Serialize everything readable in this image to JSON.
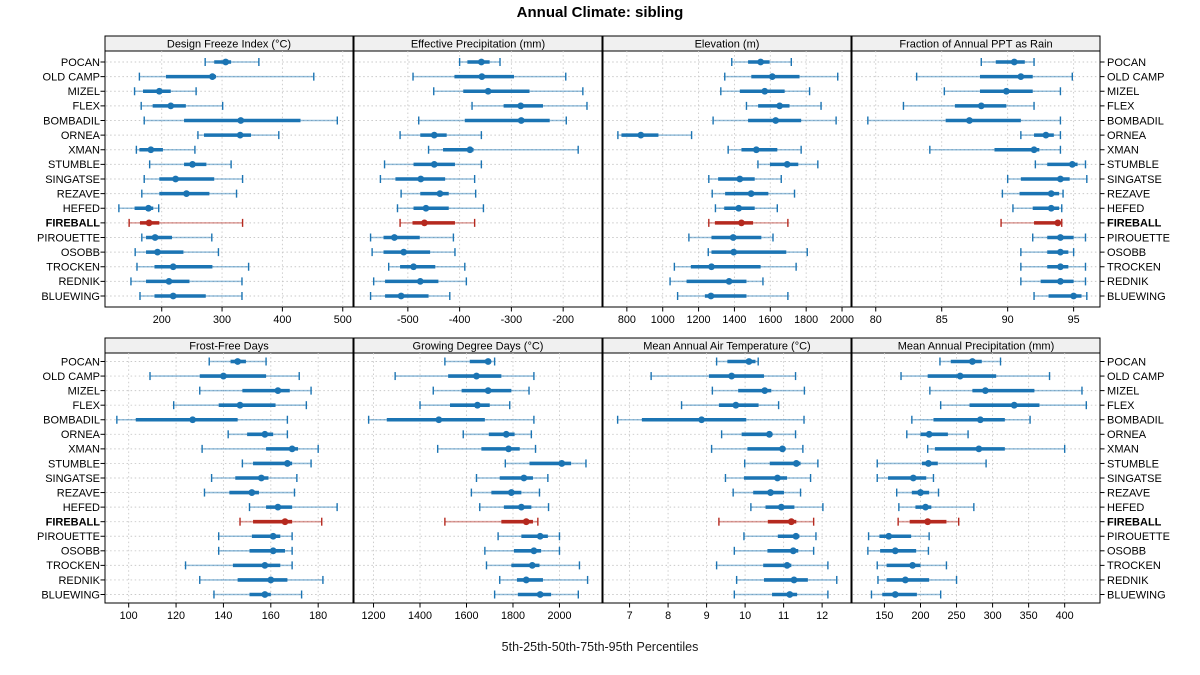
{
  "title": "Annual Climate: sibling",
  "caption": "5th-25th-50th-75th-95th Percentiles",
  "sites": [
    "POCAN",
    "OLD CAMP",
    "MIZEL",
    "FLEX",
    "BOMBADIL",
    "ORNEA",
    "XMAN",
    "STUMBLE",
    "SINGATSE",
    "REZAVE",
    "HEFED",
    "FIREBALL",
    "PIROUETTE",
    "OSOBB",
    "TROCKEN",
    "REDNIK",
    "BLUEWING"
  ],
  "highlight_site": "FIREBALL",
  "colors": {
    "series_blue": "#1b74b3",
    "highlight_red": "#b5291f",
    "grid": "#c9c9c9",
    "strip_bg": "#f0f0f0",
    "border": "#000000",
    "text": "#000000"
  },
  "chart_data": {
    "type": "percentile-dotplot-trellis",
    "percentiles": [
      5,
      25,
      50,
      75,
      95
    ],
    "legend_note": "thin line = 5th-95th, thick line = 25th-75th, dot = 50th",
    "panels": [
      {
        "title": "Design Freeze Index (°C)",
        "row": 0,
        "col": 0,
        "ticks": [
          200,
          300,
          400,
          500
        ],
        "xlim": [
          106,
          517
        ],
        "values": [
          [
            272,
            287,
            306,
            315,
            361
          ],
          [
            163,
            207,
            284,
            290,
            452
          ],
          [
            155,
            169,
            196,
            215,
            257
          ],
          [
            166,
            185,
            215,
            240,
            301
          ],
          [
            171,
            237,
            331,
            430,
            491
          ],
          [
            260,
            270,
            330,
            348,
            394
          ],
          [
            158,
            163,
            182,
            202,
            255
          ],
          [
            180,
            237,
            251,
            274,
            315
          ],
          [
            171,
            196,
            223,
            287,
            334
          ],
          [
            167,
            196,
            241,
            279,
            324
          ],
          [
            129,
            155,
            178,
            186,
            195
          ],
          [
            146,
            164,
            179,
            196,
            334
          ],
          [
            167,
            174,
            189,
            217,
            283
          ],
          [
            156,
            174,
            193,
            236,
            294
          ],
          [
            159,
            188,
            219,
            284,
            344
          ],
          [
            149,
            174,
            212,
            246,
            333
          ],
          [
            164,
            188,
            219,
            273,
            333
          ]
        ]
      },
      {
        "title": "Effective Precipitation (mm)",
        "row": 0,
        "col": 1,
        "ticks": [
          -500,
          -400,
          -300,
          -200
        ],
        "xlim": [
          -604,
          -125
        ],
        "values": [
          [
            -400,
            -385,
            -358,
            -342,
            -322
          ],
          [
            -490,
            -410,
            -357,
            -295,
            -195
          ],
          [
            -450,
            -393,
            -345,
            -265,
            -162
          ],
          [
            -376,
            -315,
            -282,
            -239,
            -154
          ],
          [
            -479,
            -390,
            -281,
            -226,
            -194
          ],
          [
            -515,
            -476,
            -449,
            -425,
            -358
          ],
          [
            -460,
            -432,
            -380,
            -373,
            -171
          ],
          [
            -545,
            -489,
            -449,
            -409,
            -358
          ],
          [
            -553,
            -524,
            -475,
            -428,
            -371
          ],
          [
            -513,
            -476,
            -438,
            -421,
            -369
          ],
          [
            -520,
            -489,
            -465,
            -421,
            -354
          ],
          [
            -515,
            -491,
            -468,
            -409,
            -371
          ],
          [
            -572,
            -547,
            -526,
            -477,
            -412
          ],
          [
            -569,
            -547,
            -508,
            -457,
            -409
          ],
          [
            -537,
            -515,
            -489,
            -447,
            -390
          ],
          [
            -566,
            -544,
            -476,
            -441,
            -387
          ],
          [
            -572,
            -544,
            -513,
            -460,
            -419
          ]
        ]
      },
      {
        "title": "Elevation (m)",
        "row": 0,
        "col": 2,
        "ticks": [
          800,
          1000,
          1200,
          1400,
          1600,
          1800,
          2000
        ],
        "xlim": [
          667,
          2050
        ],
        "values": [
          [
            1385,
            1476,
            1546,
            1596,
            1717
          ],
          [
            1346,
            1494,
            1611,
            1763,
            1976
          ],
          [
            1324,
            1430,
            1569,
            1680,
            1819
          ],
          [
            1467,
            1532,
            1652,
            1707,
            1883
          ],
          [
            1281,
            1476,
            1630,
            1772,
            1967
          ],
          [
            750,
            770,
            878,
            976,
            1161
          ],
          [
            1365,
            1439,
            1522,
            1639,
            1772
          ],
          [
            1531,
            1598,
            1694,
            1756,
            1865
          ],
          [
            1257,
            1309,
            1430,
            1513,
            1661
          ],
          [
            1276,
            1348,
            1493,
            1589,
            1735
          ],
          [
            1294,
            1343,
            1424,
            1513,
            1639
          ],
          [
            1257,
            1291,
            1439,
            1504,
            1698
          ],
          [
            1146,
            1272,
            1393,
            1550,
            1615
          ],
          [
            1254,
            1272,
            1396,
            1689,
            1806
          ],
          [
            1065,
            1157,
            1272,
            1546,
            1744
          ],
          [
            1041,
            1133,
            1370,
            1467,
            1559
          ],
          [
            1083,
            1235,
            1269,
            1467,
            1698
          ]
        ]
      },
      {
        "title": "Fraction of Annual PPT as Rain",
        "row": 0,
        "col": 3,
        "ticks": [
          80,
          85,
          90,
          95
        ],
        "xlim": [
          78.2,
          97
        ],
        "values": [
          [
            88,
            89.1,
            90.5,
            91.3,
            92
          ],
          [
            83.1,
            87.9,
            91,
            91.9,
            94.9
          ],
          [
            85.2,
            87.9,
            89.9,
            91.9,
            94
          ],
          [
            82.1,
            86,
            88,
            89.9,
            92
          ],
          [
            79.4,
            85.3,
            87.1,
            91,
            94
          ],
          [
            91,
            92,
            92.9,
            93.5,
            94
          ],
          [
            84.1,
            89,
            92,
            92.4,
            94
          ],
          [
            92.1,
            93,
            94.9,
            95.3,
            95.9
          ],
          [
            90,
            91,
            94,
            94.7,
            96
          ],
          [
            89.6,
            90.9,
            93.3,
            93.9,
            94.2
          ],
          [
            90.4,
            91.9,
            93.3,
            93.9,
            94.1
          ],
          [
            89.5,
            92,
            93.8,
            94,
            94.1
          ],
          [
            91.9,
            93,
            94,
            95,
            95.9
          ],
          [
            91,
            93,
            94,
            94.6,
            95
          ],
          [
            91,
            93,
            94,
            94.6,
            95.9
          ],
          [
            91,
            92.5,
            94,
            95,
            95.9
          ],
          [
            92,
            93.1,
            95,
            95.6,
            96
          ]
        ]
      },
      {
        "title": "Frost-Free Days",
        "row": 1,
        "col": 0,
        "ticks": [
          100,
          120,
          140,
          160,
          180
        ],
        "xlim": [
          90,
          194.7
        ],
        "values": [
          [
            134,
            143,
            146,
            149.5,
            158
          ],
          [
            109,
            130,
            140,
            158,
            172
          ],
          [
            130,
            148,
            163,
            168,
            177
          ],
          [
            119,
            138,
            147,
            162,
            175
          ],
          [
            95,
            103,
            127,
            146,
            167
          ],
          [
            142,
            150,
            157.5,
            161,
            167
          ],
          [
            131,
            158,
            169,
            171.5,
            180
          ],
          [
            148,
            152.5,
            167,
            169,
            177
          ],
          [
            135,
            145,
            156,
            159,
            171
          ],
          [
            132,
            142.5,
            152,
            155,
            170
          ],
          [
            151,
            158,
            163,
            169,
            188
          ],
          [
            147,
            152.5,
            166,
            169,
            181.5
          ],
          [
            138,
            152,
            161,
            164,
            169
          ],
          [
            138,
            151,
            161,
            166,
            169
          ],
          [
            124,
            144,
            157.5,
            164,
            169
          ],
          [
            130,
            146,
            160,
            167,
            182
          ],
          [
            136,
            151,
            157.5,
            160,
            173
          ]
        ]
      },
      {
        "title": "Growing Degree Days (°C)",
        "row": 1,
        "col": 1,
        "ticks": [
          1200,
          1400,
          1600,
          1800,
          2000
        ],
        "xlim": [
          1116,
          2183
        ],
        "values": [
          [
            1507,
            1614,
            1693,
            1700,
            1721
          ],
          [
            1293,
            1521,
            1643,
            1750,
            1890
          ],
          [
            1457,
            1579,
            1693,
            1793,
            1869
          ],
          [
            1400,
            1529,
            1647,
            1700,
            1786
          ],
          [
            1179,
            1257,
            1481,
            1679,
            1890
          ],
          [
            1586,
            1696,
            1771,
            1807,
            1879
          ],
          [
            1476,
            1664,
            1781,
            1829,
            1897
          ],
          [
            1767,
            1871,
            2010,
            2050,
            2114
          ],
          [
            1643,
            1743,
            1847,
            1886,
            1950
          ],
          [
            1621,
            1707,
            1793,
            1836,
            1914
          ],
          [
            1657,
            1761,
            1836,
            1879,
            1953
          ],
          [
            1507,
            1750,
            1857,
            1886,
            1907
          ],
          [
            1736,
            1836,
            1917,
            1950,
            2000
          ],
          [
            1679,
            1804,
            1890,
            1921,
            2000
          ],
          [
            1686,
            1793,
            1883,
            1914,
            2086
          ],
          [
            1743,
            1817,
            1857,
            1929,
            2121
          ],
          [
            1721,
            1821,
            1917,
            1964,
            2081
          ]
        ]
      },
      {
        "title": "Mean Annual Air Temperature (°C)",
        "row": 1,
        "col": 2,
        "ticks": [
          7,
          8,
          9,
          10,
          11,
          12
        ],
        "xlim": [
          6.31,
          12.75
        ],
        "values": [
          [
            9.26,
            9.54,
            10.1,
            10.27,
            10.34
          ],
          [
            7.56,
            9.06,
            9.65,
            10.49,
            11.31
          ],
          [
            9.15,
            9.82,
            10.51,
            10.68,
            11.54
          ],
          [
            8.35,
            9.32,
            9.76,
            10.35,
            10.87
          ],
          [
            6.69,
            7.32,
            8.87,
            10.03,
            11.53
          ],
          [
            9.39,
            9.91,
            10.63,
            10.71,
            11.31
          ],
          [
            9.13,
            10.06,
            10.97,
            11.05,
            11.5
          ],
          [
            9.99,
            10.64,
            11.33,
            11.44,
            11.89
          ],
          [
            9.49,
            9.97,
            10.84,
            11.09,
            11.7
          ],
          [
            9.69,
            10.21,
            10.66,
            11.01,
            11.44
          ],
          [
            10.15,
            10.53,
            10.94,
            11.28,
            12.02
          ],
          [
            9.32,
            10.59,
            11.2,
            11.33,
            11.78
          ],
          [
            9.97,
            10.85,
            11.32,
            11.41,
            11.84
          ],
          [
            9.72,
            10.58,
            11.25,
            11.38,
            11.78
          ],
          [
            9.26,
            10.47,
            11.09,
            11.2,
            12.15
          ],
          [
            9.78,
            10.49,
            11.27,
            11.63,
            12.38
          ],
          [
            9.72,
            10.7,
            11.16,
            11.35,
            12.15
          ]
        ]
      },
      {
        "title": "Mean Annual Precipitation (mm)",
        "row": 1,
        "col": 3,
        "ticks": [
          150,
          200,
          250,
          300,
          350,
          400
        ],
        "xlim": [
          105,
          449
        ],
        "values": [
          [
            227,
            242,
            272,
            285,
            311
          ],
          [
            173,
            210,
            255,
            305,
            379
          ],
          [
            213,
            272,
            290,
            358,
            424
          ],
          [
            228,
            268,
            330,
            365,
            430
          ],
          [
            188,
            218,
            283,
            317,
            352
          ],
          [
            181,
            200,
            212,
            238,
            266
          ],
          [
            210,
            220,
            281,
            317,
            400
          ],
          [
            140,
            202,
            211,
            224,
            291
          ],
          [
            140,
            155,
            190,
            208,
            218
          ],
          [
            167,
            188,
            200,
            212,
            225
          ],
          [
            170,
            193,
            207,
            215,
            274
          ],
          [
            169,
            185,
            210,
            236,
            253
          ],
          [
            128,
            143,
            156,
            187,
            212
          ],
          [
            127,
            144,
            165,
            194,
            211
          ],
          [
            140,
            153,
            189,
            200,
            236
          ],
          [
            141,
            153,
            179,
            212,
            250
          ],
          [
            132,
            147,
            165,
            195,
            228
          ]
        ]
      }
    ]
  }
}
